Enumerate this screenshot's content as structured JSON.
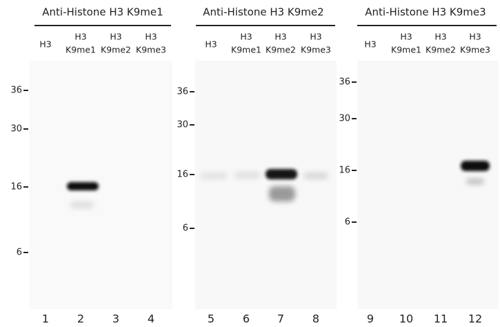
{
  "panels": [
    {
      "title": "Anti-Histone H3 K9me1",
      "lanes": [
        {
          "header": [
            "H3"
          ],
          "number": "1"
        },
        {
          "header": [
            "H3",
            "K9me1"
          ],
          "number": "2"
        },
        {
          "header": [
            "H3",
            "K9me2"
          ],
          "number": "3"
        },
        {
          "header": [
            "H3",
            "K9me3"
          ],
          "number": "4"
        }
      ],
      "markers": [
        "36",
        "30",
        "16",
        "6"
      ]
    },
    {
      "title": "Anti-Histone H3 K9me2",
      "lanes": [
        {
          "header": [
            "H3"
          ],
          "number": "5"
        },
        {
          "header": [
            "H3",
            "K9me1"
          ],
          "number": "6"
        },
        {
          "header": [
            "H3",
            "K9me2"
          ],
          "number": "7"
        },
        {
          "header": [
            "H3",
            "K9me3"
          ],
          "number": "8"
        }
      ],
      "markers": [
        "36",
        "30",
        "16",
        "6"
      ]
    },
    {
      "title": "Anti-Histone H3 K9me3",
      "lanes": [
        {
          "header": [
            "H3"
          ],
          "number": "9"
        },
        {
          "header": [
            "H3",
            "K9me1"
          ],
          "number": "10"
        },
        {
          "header": [
            "H3",
            "K9me2"
          ],
          "number": "11"
        },
        {
          "header": [
            "H3",
            "K9me3"
          ],
          "number": "12"
        }
      ],
      "markers": [
        "36",
        "30",
        "16",
        "6"
      ]
    }
  ]
}
